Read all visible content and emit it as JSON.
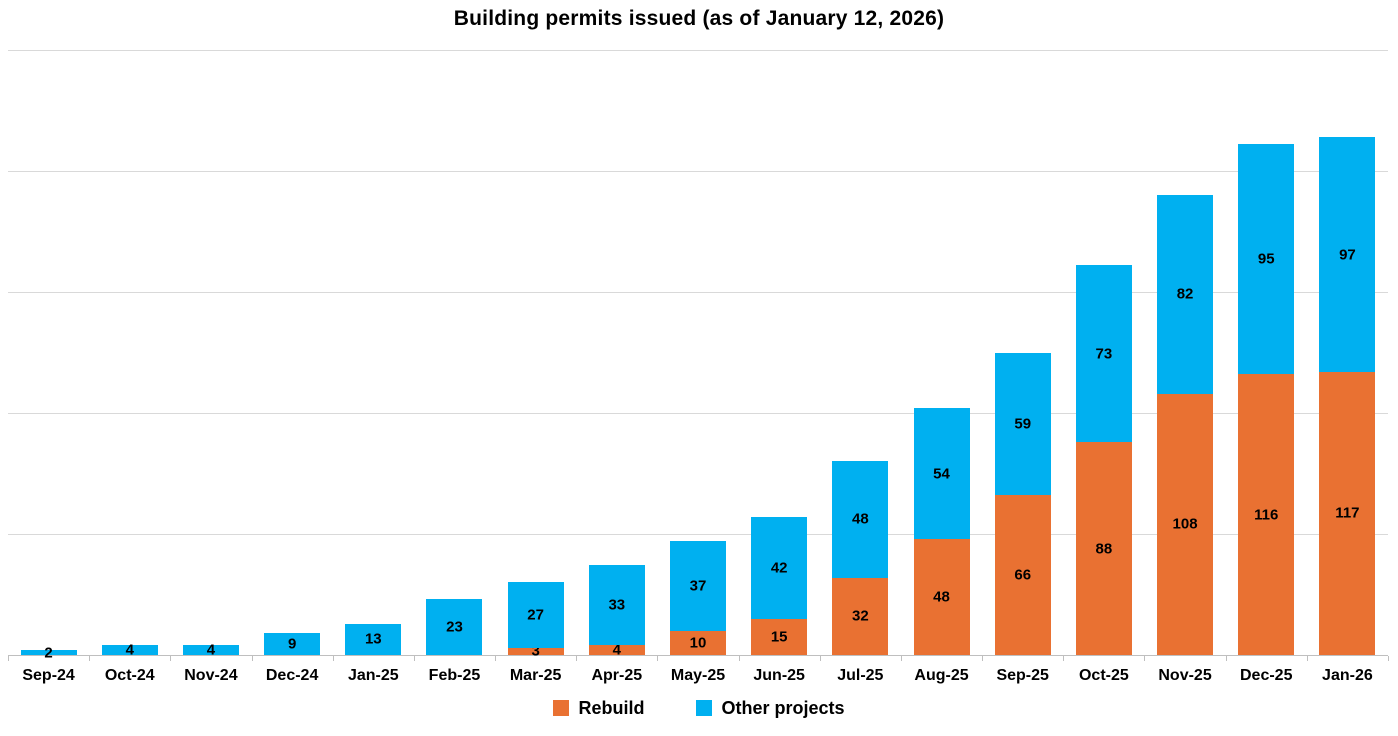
{
  "chart_data": {
    "type": "bar",
    "stacked": true,
    "title": "Building permits issued (as of January 12, 2026)",
    "categories": [
      "Sep-24",
      "Oct-24",
      "Nov-24",
      "Dec-24",
      "Jan-25",
      "Feb-25",
      "Mar-25",
      "Apr-25",
      "May-25",
      "Jun-25",
      "Jul-25",
      "Aug-25",
      "Sep-25",
      "Oct-25",
      "Nov-25",
      "Dec-25",
      "Jan-26"
    ],
    "series": [
      {
        "name": "Rebuild",
        "color": "#E97132",
        "values": [
          0,
          0,
          0,
          0,
          0,
          0,
          3,
          4,
          10,
          15,
          32,
          48,
          66,
          88,
          108,
          116,
          117
        ]
      },
      {
        "name": "Other projects",
        "color": "#00B0F0",
        "values": [
          2,
          4,
          4,
          9,
          13,
          23,
          27,
          33,
          37,
          42,
          48,
          54,
          59,
          73,
          82,
          95,
          97
        ]
      }
    ],
    "ylim": [
      0,
      250
    ],
    "gridline_step": 50,
    "grid": true,
    "y_axis_labels": false,
    "data_labels": true,
    "legend_position": "bottom",
    "colors": {
      "gridline": "#D9D9D9",
      "axis": "#BFBFBF",
      "text": "#000000",
      "background": "#FFFFFF"
    }
  }
}
